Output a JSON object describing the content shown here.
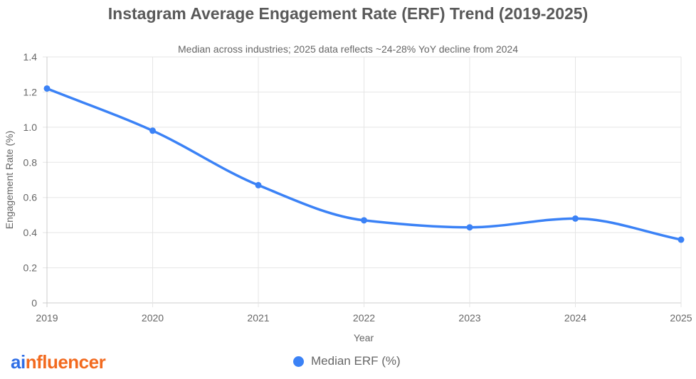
{
  "colors": {
    "series": "#3b82f6",
    "grid": "#e5e5e5",
    "axis": "#cccccc",
    "text": "#666666"
  },
  "logo": {
    "part1": "ai",
    "part2": "nfluencer"
  },
  "chart_data": {
    "type": "line",
    "title": "Instagram Average Engagement Rate (ERF) Trend (2019-2025)",
    "subtitle": "Median across industries; 2025 data reflects ~24-28% YoY decline from 2024",
    "xlabel": "Year",
    "ylabel": "Engagement Rate (%)",
    "x": [
      "2019",
      "2020",
      "2021",
      "2022",
      "2023",
      "2024",
      "2025"
    ],
    "ylim": [
      0,
      1.4
    ],
    "yticks": [
      "0",
      "0.2",
      "0.4",
      "0.6",
      "0.8",
      "1.0",
      "1.2",
      "1.4"
    ],
    "grid": true,
    "legend_position": "bottom",
    "series": [
      {
        "name": "Median ERF (%)",
        "values": [
          1.22,
          0.98,
          0.67,
          0.47,
          0.43,
          0.48,
          0.36
        ]
      }
    ]
  }
}
